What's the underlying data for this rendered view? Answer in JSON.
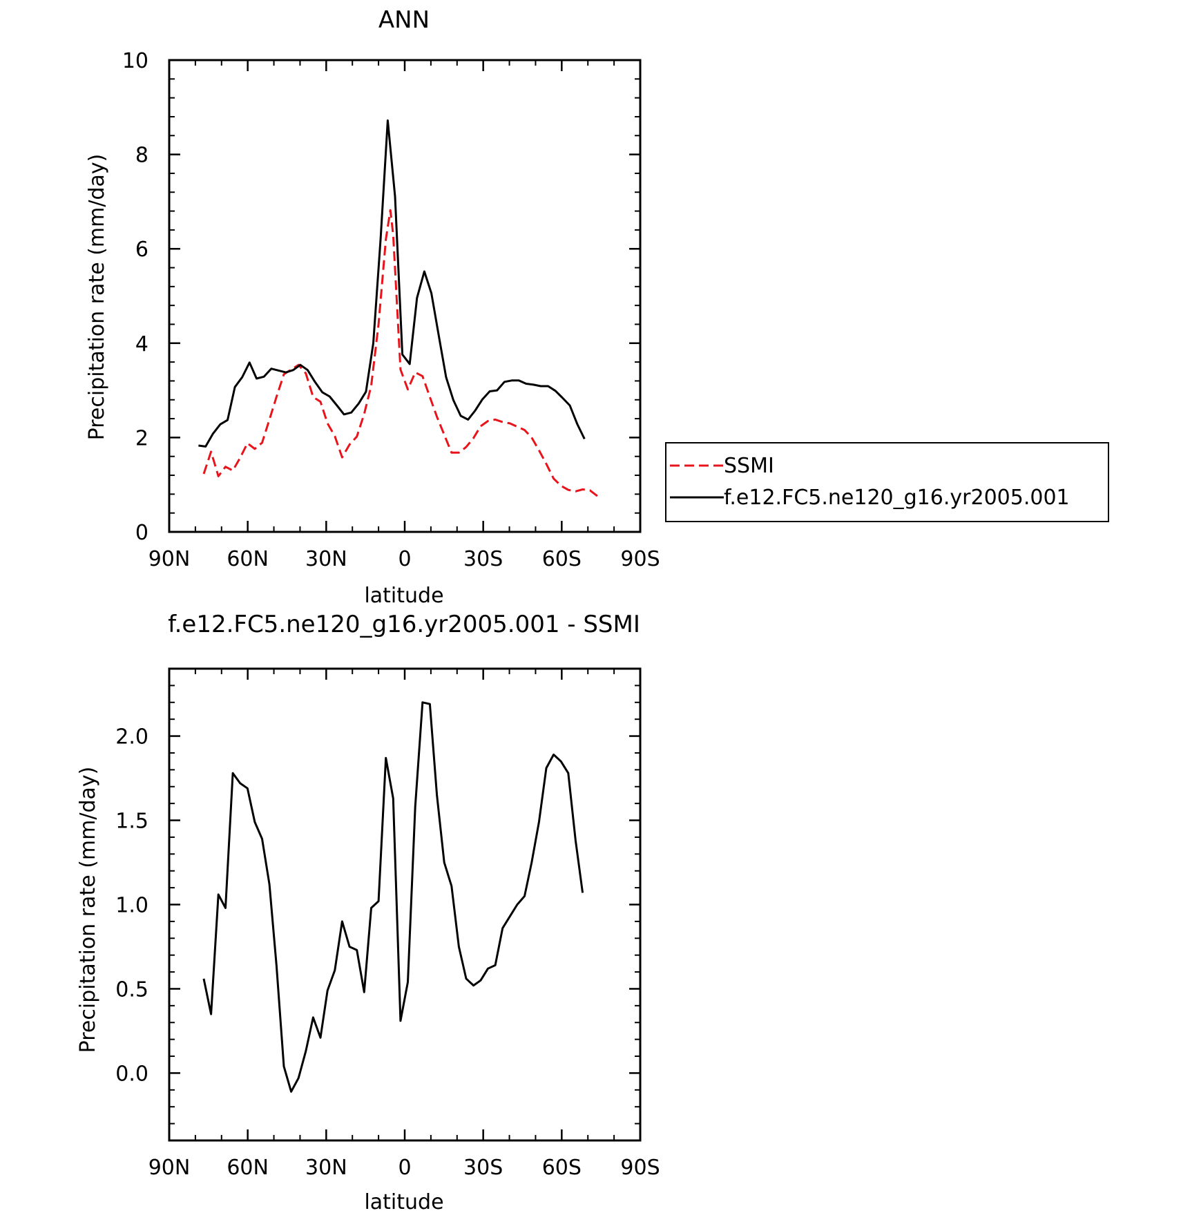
{
  "chart_data": [
    {
      "type": "line",
      "title": "ANN",
      "xlabel": "latitude",
      "ylabel": "Precipitation rate (mm/day)",
      "xlim": [
        90,
        -90
      ],
      "ylim": [
        0,
        10
      ],
      "xticks": [
        {
          "value": 90,
          "label": "90N"
        },
        {
          "value": 60,
          "label": "60N"
        },
        {
          "value": 30,
          "label": "30N"
        },
        {
          "value": 0,
          "label": "0"
        },
        {
          "value": -30,
          "label": "30S"
        },
        {
          "value": -60,
          "label": "60S"
        },
        {
          "value": -90,
          "label": "90S"
        }
      ],
      "yticks": [
        {
          "value": 0,
          "label": "0"
        },
        {
          "value": 2,
          "label": "2"
        },
        {
          "value": 4,
          "label": "4"
        },
        {
          "value": 6,
          "label": "6"
        },
        {
          "value": 8,
          "label": "8"
        },
        {
          "value": 10,
          "label": "10"
        }
      ],
      "grid": false,
      "legend": {
        "placement": "right",
        "entries": [
          "SSMI",
          "f.e12.FC5.ne120_g16.yr2005.001"
        ]
      },
      "series": [
        {
          "name": "SSMI",
          "color": "#e8141b",
          "dash": "dashed",
          "points": [
            [
              76.8,
              1.23
            ],
            [
              74.0,
              1.7
            ],
            [
              71.2,
              1.18
            ],
            [
              68.5,
              1.38
            ],
            [
              65.7,
              1.3
            ],
            [
              62.9,
              1.57
            ],
            [
              60.1,
              1.88
            ],
            [
              57.3,
              1.76
            ],
            [
              54.5,
              1.89
            ],
            [
              51.7,
              2.38
            ],
            [
              49.0,
              2.86
            ],
            [
              46.2,
              3.34
            ],
            [
              43.4,
              3.44
            ],
            [
              40.6,
              3.54
            ],
            [
              37.8,
              3.36
            ],
            [
              35.0,
              2.86
            ],
            [
              32.2,
              2.76
            ],
            [
              29.5,
              2.3
            ],
            [
              26.7,
              2.03
            ],
            [
              23.9,
              1.58
            ],
            [
              21.1,
              1.85
            ],
            [
              18.3,
              2.02
            ],
            [
              15.5,
              2.5
            ],
            [
              12.8,
              3.1
            ],
            [
              10.0,
              4.4
            ],
            [
              7.2,
              6.2
            ],
            [
              5.5,
              6.82
            ],
            [
              4.4,
              6.3
            ],
            [
              1.6,
              3.44
            ],
            [
              -1.2,
              3.02
            ],
            [
              -4.0,
              3.38
            ],
            [
              -6.8,
              3.3
            ],
            [
              -9.6,
              2.86
            ],
            [
              -12.3,
              2.44
            ],
            [
              -15.1,
              2.06
            ],
            [
              -17.9,
              1.68
            ],
            [
              -20.7,
              1.68
            ],
            [
              -23.5,
              1.8
            ],
            [
              -26.3,
              1.99
            ],
            [
              -29.0,
              2.24
            ],
            [
              -31.8,
              2.35
            ],
            [
              -34.6,
              2.38
            ],
            [
              -37.4,
              2.33
            ],
            [
              -40.2,
              2.3
            ],
            [
              -43.0,
              2.23
            ],
            [
              -45.8,
              2.16
            ],
            [
              -48.5,
              2.0
            ],
            [
              -51.3,
              1.73
            ],
            [
              -54.1,
              1.44
            ],
            [
              -56.9,
              1.13
            ],
            [
              -59.7,
              0.98
            ],
            [
              -62.5,
              0.89
            ],
            [
              -65.3,
              0.86
            ],
            [
              -68.0,
              0.9
            ],
            [
              -70.8,
              0.88
            ],
            [
              -73.6,
              0.76
            ]
          ]
        },
        {
          "name": "f.e12.FC5.ne120_g16.yr2005.001",
          "color": "#000000",
          "dash": "solid",
          "points": [
            [
              78.8,
              1.83
            ],
            [
              76.1,
              1.81
            ],
            [
              73.3,
              2.08
            ],
            [
              70.5,
              2.28
            ],
            [
              67.7,
              2.37
            ],
            [
              64.9,
              3.07
            ],
            [
              62.1,
              3.28
            ],
            [
              59.3,
              3.59
            ],
            [
              56.6,
              3.25
            ],
            [
              53.8,
              3.29
            ],
            [
              51.0,
              3.46
            ],
            [
              48.2,
              3.42
            ],
            [
              45.4,
              3.38
            ],
            [
              42.6,
              3.43
            ],
            [
              39.9,
              3.54
            ],
            [
              37.1,
              3.43
            ],
            [
              34.3,
              3.18
            ],
            [
              31.5,
              2.96
            ],
            [
              28.7,
              2.87
            ],
            [
              25.9,
              2.68
            ],
            [
              23.2,
              2.49
            ],
            [
              20.4,
              2.53
            ],
            [
              17.6,
              2.72
            ],
            [
              14.8,
              2.97
            ],
            [
              12.0,
              4.0
            ],
            [
              9.2,
              6.21
            ],
            [
              6.5,
              8.72
            ],
            [
              3.7,
              7.11
            ],
            [
              0.9,
              3.76
            ],
            [
              -1.9,
              3.56
            ],
            [
              -4.7,
              4.96
            ],
            [
              -7.5,
              5.52
            ],
            [
              -10.2,
              5.06
            ],
            [
              -13.0,
              4.16
            ],
            [
              -15.8,
              3.28
            ],
            [
              -18.6,
              2.79
            ],
            [
              -21.4,
              2.46
            ],
            [
              -24.2,
              2.38
            ],
            [
              -26.9,
              2.57
            ],
            [
              -29.7,
              2.81
            ],
            [
              -32.5,
              2.98
            ],
            [
              -35.3,
              3.0
            ],
            [
              -38.1,
              3.18
            ],
            [
              -40.9,
              3.21
            ],
            [
              -43.6,
              3.21
            ],
            [
              -46.4,
              3.14
            ],
            [
              -49.2,
              3.12
            ],
            [
              -52.0,
              3.09
            ],
            [
              -54.8,
              3.09
            ],
            [
              -57.6,
              2.99
            ],
            [
              -60.3,
              2.84
            ],
            [
              -63.1,
              2.68
            ],
            [
              -65.9,
              2.29
            ],
            [
              -68.7,
              1.97
            ]
          ]
        }
      ]
    },
    {
      "type": "line",
      "title": "f.e12.FC5.ne120_g16.yr2005.001 - SSMI",
      "xlabel": "latitude",
      "ylabel": "Precipitation rate (mm/day)",
      "xlim": [
        90,
        -90
      ],
      "ylim": [
        -0.4,
        2.4
      ],
      "xticks": [
        {
          "value": 90,
          "label": "90N"
        },
        {
          "value": 60,
          "label": "60N"
        },
        {
          "value": 30,
          "label": "30N"
        },
        {
          "value": 0,
          "label": "0"
        },
        {
          "value": -30,
          "label": "30S"
        },
        {
          "value": -60,
          "label": "60S"
        },
        {
          "value": -90,
          "label": "90S"
        }
      ],
      "yticks": [
        {
          "value": 0.0,
          "label": "0.0"
        },
        {
          "value": 0.5,
          "label": "0.5"
        },
        {
          "value": 1.0,
          "label": "1.0"
        },
        {
          "value": 1.5,
          "label": "1.5"
        },
        {
          "value": 2.0,
          "label": "2.0"
        }
      ],
      "grid": false,
      "series": [
        {
          "color": "#000000",
          "dash": "solid",
          "points": [
            [
              76.8,
              0.56
            ],
            [
              74.0,
              0.35
            ],
            [
              71.2,
              1.06
            ],
            [
              68.5,
              0.98
            ],
            [
              65.7,
              1.78
            ],
            [
              62.9,
              1.72
            ],
            [
              60.1,
              1.69
            ],
            [
              57.3,
              1.49
            ],
            [
              54.5,
              1.39
            ],
            [
              51.7,
              1.12
            ],
            [
              49.0,
              0.64
            ],
            [
              46.2,
              0.04
            ],
            [
              43.4,
              -0.11
            ],
            [
              40.6,
              -0.03
            ],
            [
              37.8,
              0.13
            ],
            [
              35.0,
              0.33
            ],
            [
              32.2,
              0.21
            ],
            [
              29.5,
              0.49
            ],
            [
              26.7,
              0.61
            ],
            [
              23.9,
              0.9
            ],
            [
              21.1,
              0.75
            ],
            [
              18.3,
              0.73
            ],
            [
              15.5,
              0.48
            ],
            [
              12.8,
              0.98
            ],
            [
              10.0,
              1.02
            ],
            [
              7.2,
              1.87
            ],
            [
              4.4,
              1.63
            ],
            [
              1.6,
              0.31
            ],
            [
              -1.2,
              0.54
            ],
            [
              -4.0,
              1.58
            ],
            [
              -6.8,
              2.2
            ],
            [
              -9.6,
              2.19
            ],
            [
              -12.3,
              1.65
            ],
            [
              -15.1,
              1.25
            ],
            [
              -17.9,
              1.11
            ],
            [
              -20.7,
              0.75
            ],
            [
              -23.5,
              0.56
            ],
            [
              -26.3,
              0.52
            ],
            [
              -29.0,
              0.55
            ],
            [
              -31.8,
              0.62
            ],
            [
              -34.6,
              0.64
            ],
            [
              -37.4,
              0.86
            ],
            [
              -40.2,
              0.93
            ],
            [
              -43.0,
              1.0
            ],
            [
              -45.8,
              1.05
            ],
            [
              -48.5,
              1.25
            ],
            [
              -51.3,
              1.49
            ],
            [
              -54.1,
              1.81
            ],
            [
              -56.9,
              1.89
            ],
            [
              -59.7,
              1.85
            ],
            [
              -62.5,
              1.78
            ],
            [
              -65.3,
              1.38
            ],
            [
              -68.0,
              1.07
            ]
          ]
        }
      ]
    }
  ]
}
